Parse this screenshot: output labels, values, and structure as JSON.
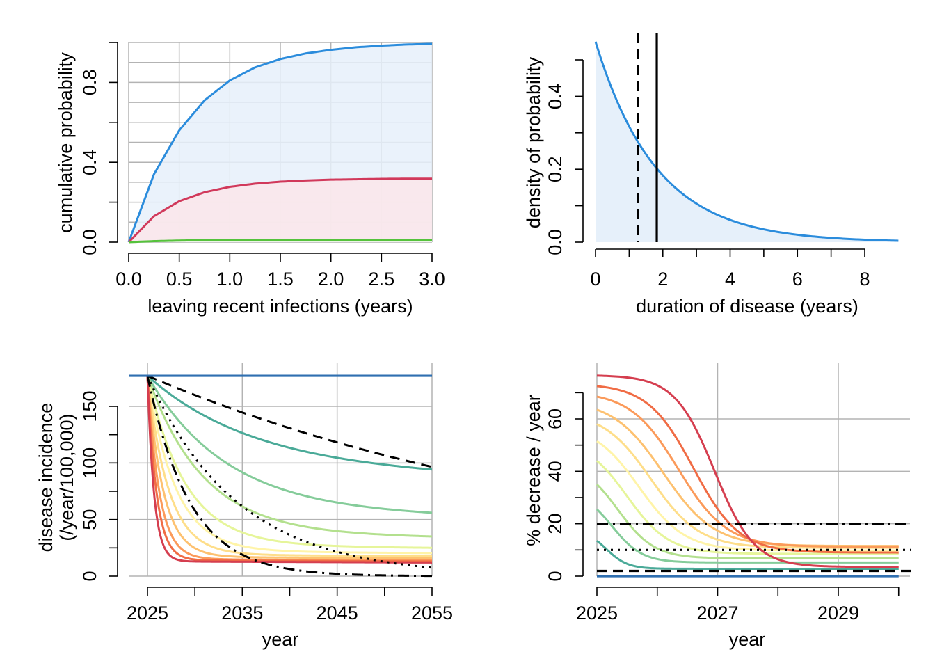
{
  "chart_data": [
    {
      "type": "area",
      "xlabel": "leaving recent infections (years)",
      "ylabel": "cumulative probability",
      "xlim": [
        0,
        3
      ],
      "ylim": [
        0,
        1
      ],
      "xticks": [
        "0.0",
        "0.5",
        "1.0",
        "1.5",
        "2.0",
        "2.5",
        "3.0"
      ],
      "yticks": [
        "0.0",
        "0.4",
        "0.8"
      ],
      "grid": true,
      "series": [
        {
          "color": "#2b8cdc",
          "fill": "#e6f0fa",
          "x": [
            0,
            0.25,
            0.5,
            0.75,
            1.0,
            1.25,
            1.5,
            1.75,
            2.0,
            2.25,
            2.5,
            2.75,
            3.0
          ],
          "y": [
            0,
            0.34,
            0.56,
            0.71,
            0.81,
            0.875,
            0.917,
            0.945,
            0.963,
            0.976,
            0.984,
            0.99,
            0.993
          ]
        },
        {
          "color": "#d1395b",
          "fill": "#fbe6ea",
          "x": [
            0,
            0.25,
            0.5,
            0.75,
            1.0,
            1.25,
            1.5,
            1.75,
            2.0,
            2.25,
            2.5,
            2.75,
            3.0
          ],
          "y": [
            0,
            0.13,
            0.205,
            0.25,
            0.277,
            0.293,
            0.303,
            0.309,
            0.313,
            0.315,
            0.317,
            0.318,
            0.318
          ]
        },
        {
          "color": "#55c23c",
          "fill": "#e9f7e5",
          "x": [
            0,
            0.25,
            0.5,
            0.75,
            1.0,
            1.25,
            1.5,
            1.75,
            2.0,
            2.25,
            2.5,
            2.75,
            3.0
          ],
          "y": [
            0,
            0.005,
            0.008,
            0.01,
            0.011,
            0.012,
            0.012,
            0.012,
            0.012,
            0.012,
            0.012,
            0.012,
            0.012
          ]
        }
      ]
    },
    {
      "type": "area",
      "xlabel": "duration of disease (years)",
      "ylabel": "density of probability",
      "xlim": [
        0,
        9
      ],
      "ylim": [
        0,
        0.55
      ],
      "xticks": [
        "0",
        "2",
        "4",
        "6",
        "8"
      ],
      "yticks": [
        "0.0",
        "0.2",
        "0.4"
      ],
      "grid": false,
      "density": {
        "color": "#2b8cdc",
        "fill": "#e6f0fa",
        "rate": 0.55,
        "x": [
          0,
          9
        ]
      },
      "vlines": [
        {
          "x": 1.26,
          "style": "dashed",
          "color": "#000000"
        },
        {
          "x": 1.82,
          "style": "solid",
          "color": "#000000"
        }
      ]
    },
    {
      "type": "line",
      "xlabel": "year",
      "ylabel": "disease incidence",
      "ylabel2": "(/year/100,000)",
      "xlim": [
        2021,
        2055
      ],
      "ylim": [
        0,
        180
      ],
      "xticks": [
        "2025",
        "2035",
        "2045",
        "2055"
      ],
      "yticks": [
        "0",
        "50",
        "100",
        "150"
      ],
      "grid": true,
      "start": {
        "x": 2025,
        "y": 177
      },
      "baseline": {
        "color": "#2f6fb0",
        "y": 177
      },
      "series": [
        {
          "color": "#4aaa98",
          "plateau": 96,
          "rate": 0.09
        },
        {
          "color": "#85cc9a",
          "plateau": 57,
          "rate": 0.12
        },
        {
          "color": "#b3e08e",
          "plateau": 37,
          "rate": 0.17
        },
        {
          "color": "#e6f59a",
          "plateau": 27,
          "rate": 0.25
        },
        {
          "color": "#fff4a8",
          "plateau": 22,
          "rate": 0.34
        },
        {
          "color": "#fede8a",
          "plateau": 19,
          "rate": 0.45
        },
        {
          "color": "#fdc170",
          "plateau": 17,
          "rate": 0.6
        },
        {
          "color": "#fb9a5a",
          "plateau": 15,
          "rate": 0.8
        },
        {
          "color": "#f06c45",
          "plateau": 14,
          "rate": 1.05
        },
        {
          "color": "#d53e4f",
          "plateau": 13,
          "rate": 1.45
        }
      ],
      "targets": [
        {
          "style": "dashed",
          "rate_pct": 2
        },
        {
          "style": "dotted",
          "rate_pct": 10
        },
        {
          "style": "dashdot",
          "rate_pct": 20
        }
      ]
    },
    {
      "type": "line",
      "xlabel": "year",
      "ylabel": "% decrease / year",
      "xlim": [
        2025,
        2030
      ],
      "ylim": [
        0,
        78
      ],
      "xticks": [
        "2025",
        "2027",
        "2029"
      ],
      "yticks": [
        "0",
        "20",
        "40",
        "60"
      ],
      "grid": true,
      "baseline": {
        "color": "#2f6fb0",
        "y": 0
      },
      "series": [
        {
          "color": "#4aaa98",
          "start": 13.5,
          "end": 2.8,
          "mid": 0.15,
          "steep": 0.18
        },
        {
          "color": "#85cc9a",
          "start": 25.5,
          "end": 5.2,
          "mid": 0.25,
          "steep": 0.25
        },
        {
          "color": "#b3e08e",
          "start": 35,
          "end": 6.8,
          "mid": 0.35,
          "steep": 0.3
        },
        {
          "color": "#e6f59a",
          "start": 44,
          "end": 8.5,
          "mid": 0.5,
          "steep": 0.35
        },
        {
          "color": "#fff4a8",
          "start": 51.5,
          "end": 9.8,
          "mid": 0.7,
          "steep": 0.38
        },
        {
          "color": "#fede8a",
          "start": 58,
          "end": 10.8,
          "mid": 0.9,
          "steep": 0.4
        },
        {
          "color": "#fdc170",
          "start": 63.5,
          "end": 11.5,
          "mid": 1.1,
          "steep": 0.42
        },
        {
          "color": "#fb9a5a",
          "start": 68.5,
          "end": 11.2,
          "mid": 1.35,
          "steep": 0.4
        },
        {
          "color": "#f06c45",
          "start": 72.5,
          "end": 9.0,
          "mid": 1.6,
          "steep": 0.38
        },
        {
          "color": "#d53e4f",
          "start": 76.5,
          "end": 3.5,
          "mid": 1.95,
          "steep": 0.33
        }
      ],
      "hlines": [
        {
          "y": 2,
          "style": "dashed"
        },
        {
          "y": 10,
          "style": "dotted"
        },
        {
          "y": 20,
          "style": "dashdot"
        }
      ]
    }
  ]
}
